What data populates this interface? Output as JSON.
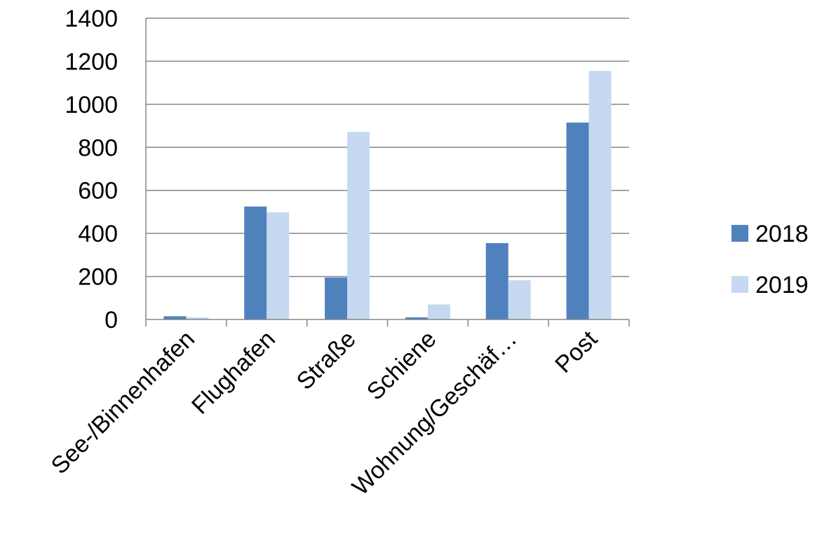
{
  "chart_data": {
    "type": "bar",
    "categories": [
      "See-/Binnenhafen",
      "Flughafen",
      "Straße",
      "Schiene",
      "Wohnung/Geschäf…",
      "Post"
    ],
    "series": [
      {
        "name": "2018",
        "color": "#4f81bd",
        "values": [
          15,
          525,
          195,
          10,
          355,
          915
        ]
      },
      {
        "name": "2019",
        "color": "#c6d9f1",
        "values": [
          10,
          498,
          872,
          70,
          182,
          1155
        ]
      }
    ],
    "ylim": [
      0,
      1400
    ],
    "yticks": [
      "0",
      "200",
      "400",
      "600",
      "800",
      "1000",
      "1200",
      "1400"
    ],
    "grid": true,
    "legend": "right"
  }
}
